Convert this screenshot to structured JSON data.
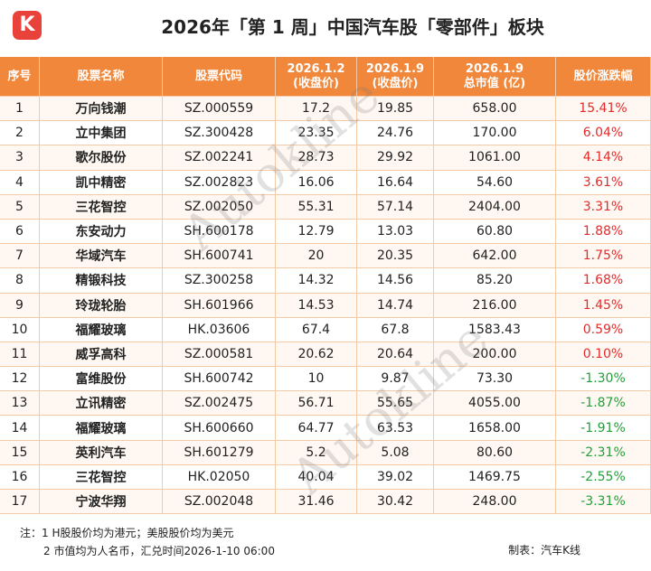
{
  "header": {
    "logo": "K",
    "title": "2026年「第 1 周」中国汽车股「零部件」板块"
  },
  "table": {
    "columns": [
      [
        "序号"
      ],
      [
        "股票名称"
      ],
      [
        "股票代码"
      ],
      [
        "2026.1.2",
        "(收盘价)"
      ],
      [
        "2026.1.9",
        "(收盘价)"
      ],
      [
        "2026.1.9",
        "总市值 (亿)"
      ],
      [
        "股价涨跌幅"
      ]
    ],
    "rows": [
      [
        "1",
        "万向钱潮",
        "SZ.000559",
        "17.2",
        "19.85",
        "658.00",
        "15.41%"
      ],
      [
        "2",
        "立中集团",
        "SZ.300428",
        "23.35",
        "24.76",
        "170.00",
        "6.04%"
      ],
      [
        "3",
        "歌尔股份",
        "SZ.002241",
        "28.73",
        "29.92",
        "1061.00",
        "4.14%"
      ],
      [
        "4",
        "凯中精密",
        "SZ.002823",
        "16.06",
        "16.64",
        "54.60",
        "3.61%"
      ],
      [
        "5",
        "三花智控",
        "SZ.002050",
        "55.31",
        "57.14",
        "2404.00",
        "3.31%"
      ],
      [
        "6",
        "东安动力",
        "SH.600178",
        "12.79",
        "13.03",
        "60.80",
        "1.88%"
      ],
      [
        "7",
        "华域汽车",
        "SH.600741",
        "20",
        "20.35",
        "642.00",
        "1.75%"
      ],
      [
        "8",
        "精锻科技",
        "SZ.300258",
        "14.32",
        "14.56",
        "85.20",
        "1.68%"
      ],
      [
        "9",
        "玲珑轮胎",
        "SH.601966",
        "14.53",
        "14.74",
        "216.00",
        "1.45%"
      ],
      [
        "10",
        "福耀玻璃",
        "HK.03606",
        "67.4",
        "67.8",
        "1583.43",
        "0.59%"
      ],
      [
        "11",
        "威孚高科",
        "SZ.000581",
        "20.62",
        "20.64",
        "200.00",
        "0.10%"
      ],
      [
        "12",
        "富维股份",
        "SH.600742",
        "10",
        "9.87",
        "73.30",
        "-1.30%"
      ],
      [
        "13",
        "立讯精密",
        "SZ.002475",
        "56.71",
        "55.65",
        "4055.00",
        "-1.87%"
      ],
      [
        "14",
        "福耀玻璃",
        "SH.600660",
        "64.77",
        "63.53",
        "1658.00",
        "-1.91%"
      ],
      [
        "15",
        "英利汽车",
        "SH.601279",
        "5.2",
        "5.08",
        "80.60",
        "-2.31%"
      ],
      [
        "16",
        "三花智控",
        "HK.02050",
        "40.04",
        "39.02",
        "1469.75",
        "-2.55%"
      ],
      [
        "17",
        "宁波华翔",
        "SZ.002048",
        "31.46",
        "30.42",
        "248.00",
        "-3.31%"
      ]
    ]
  },
  "watermark": [
    "Autokline",
    "Autokline"
  ],
  "footer": {
    "notes": [
      "注：1 H股股价均为港元；美股股价均为美元",
      "2 市值均为人名币，汇兑时间2026-1-10 06:00"
    ],
    "credit": "制表：汽车K线"
  }
}
